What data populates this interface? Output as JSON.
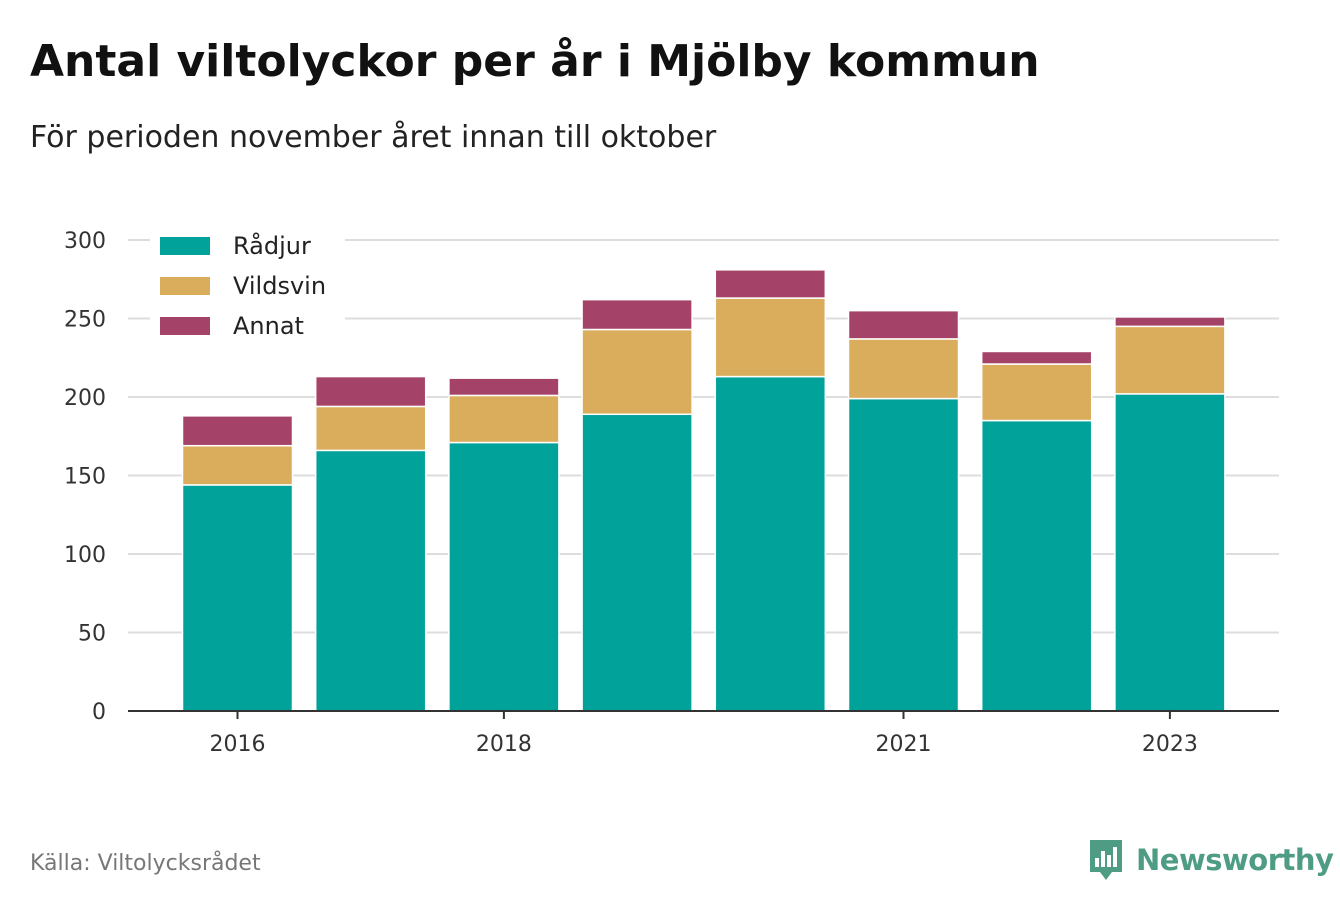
{
  "title": "Antal viltolyckor per år i Mjölby kommun",
  "subtitle": "För perioden november året innan till oktober",
  "source": "Källa: Viltolycksrådet",
  "brand": {
    "name": "Newsworthy",
    "color": "#4f9c85",
    "icon": "bar-chart-speech-bubble-icon"
  },
  "chart_data": {
    "type": "bar",
    "stacked": true,
    "categories": [
      "2016",
      "2017",
      "2018",
      "2019",
      "2020",
      "2021",
      "2022",
      "2023"
    ],
    "x_tick_labels": [
      "2016",
      "2018",
      "2021",
      "2023"
    ],
    "series": [
      {
        "name": "Rådjur",
        "color": "#00a29a",
        "values": [
          144,
          166,
          171,
          189,
          213,
          199,
          185,
          202
        ]
      },
      {
        "name": "Vildsvin",
        "color": "#d9ad5b",
        "values": [
          25,
          28,
          30,
          54,
          50,
          38,
          36,
          43
        ]
      },
      {
        "name": "Annat",
        "color": "#a54267",
        "values": [
          19,
          19,
          11,
          19,
          18,
          18,
          8,
          6
        ]
      }
    ],
    "ylim": [
      0,
      300
    ],
    "yticks": [
      0,
      50,
      100,
      150,
      200,
      250,
      300
    ],
    "grid": true,
    "legend_position": "top-left",
    "xlabel": "",
    "ylabel": ""
  }
}
